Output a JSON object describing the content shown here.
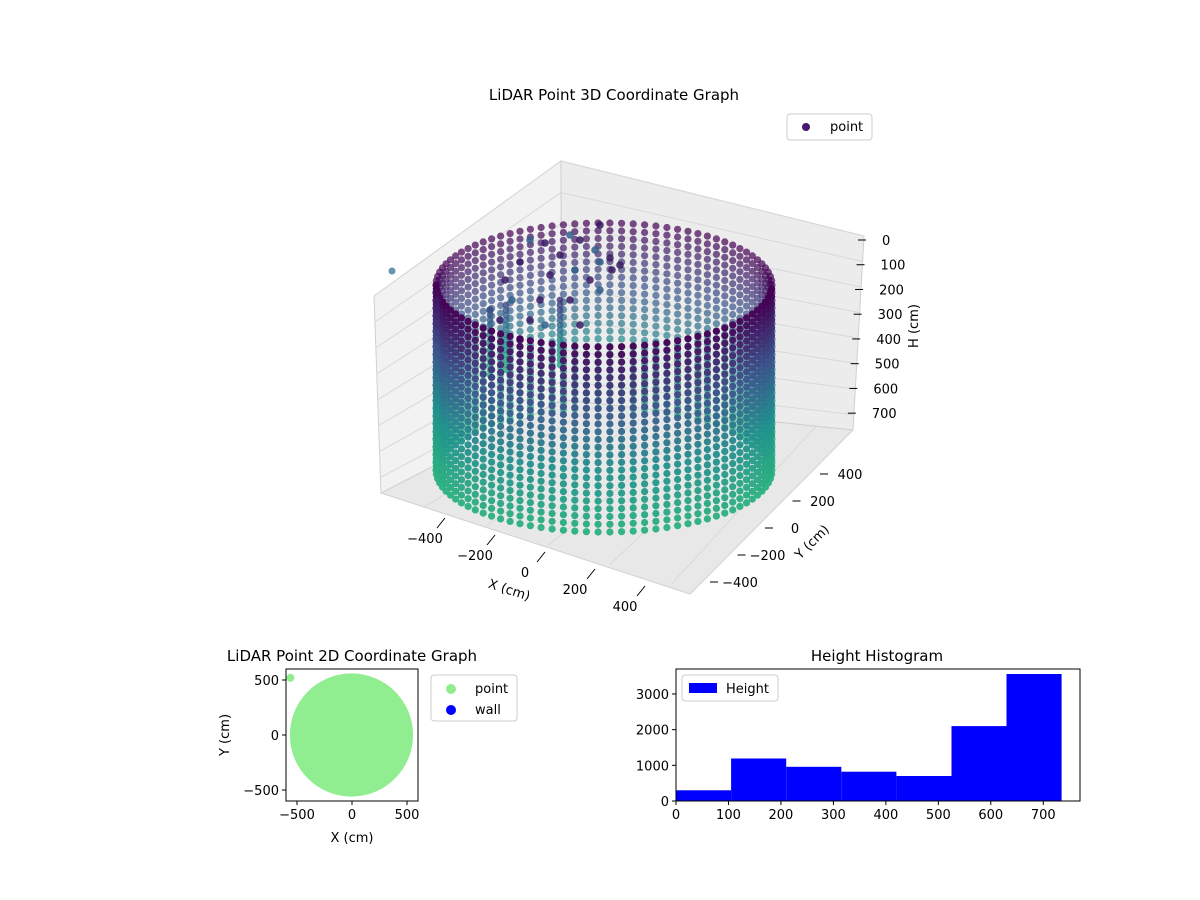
{
  "chart_data": [
    {
      "type": "scatter3d",
      "title": "LiDAR Point 3D Coordinate Graph",
      "xlabel": "X (cm)",
      "ylabel": "Y (cm)",
      "zlabel": "H (cm)",
      "xticks": [
        -400,
        -200,
        0,
        200,
        400
      ],
      "yticks": [
        -400,
        -200,
        0,
        200,
        400
      ],
      "zticks": [
        0,
        100,
        200,
        300,
        400,
        500,
        600,
        700
      ],
      "zlim": [
        0,
        760
      ],
      "zaxis_inverted": true,
      "grid": true,
      "legend": {
        "entries": [
          "point"
        ],
        "placement": "upper-right"
      },
      "colormap": "viridis",
      "series": [
        {
          "name": "point",
          "shape": "cylinder",
          "center": [
            0,
            0
          ],
          "radius": 500,
          "height_range": [
            0,
            730
          ],
          "note_values": "points distributed around a circular wall of radius ~500 cm, colored by height"
        }
      ],
      "colors": {
        "low": "#440154",
        "mid": "#31688e",
        "high": "#1fa088"
      }
    },
    {
      "type": "scatter",
      "title": "LiDAR Point 2D Coordinate Graph",
      "xlabel": "X (cm)",
      "ylabel": "Y (cm)",
      "xticks": [
        -500,
        0,
        500
      ],
      "yticks": [
        500,
        0,
        -500
      ],
      "xlim": [
        -600,
        600
      ],
      "ylim": [
        -600,
        600
      ],
      "legend": {
        "entries": [
          "point",
          "wall"
        ],
        "placement": "outside-right"
      },
      "series": [
        {
          "name": "point",
          "color": "#90ee90",
          "region": "disc",
          "center": [
            0,
            0
          ],
          "radius": 560
        },
        {
          "name": "wall",
          "color": "#0000ff",
          "points": []
        }
      ]
    },
    {
      "type": "bar",
      "title": "Height Histogram",
      "xlabel": "",
      "ylabel": "",
      "xticks": [
        0,
        100,
        200,
        300,
        400,
        500,
        600,
        700
      ],
      "yticks": [
        0,
        1000,
        2000,
        3000
      ],
      "xlim": [
        0,
        770
      ],
      "ylim": [
        0,
        3700
      ],
      "legend": {
        "entries": [
          "Height"
        ],
        "placement": "upper-left"
      },
      "color": "#0000ff",
      "bins": [
        0,
        105,
        210,
        315,
        420,
        525,
        630,
        735
      ],
      "counts": [
        300,
        1190,
        960,
        820,
        700,
        2100,
        3560
      ]
    }
  ]
}
